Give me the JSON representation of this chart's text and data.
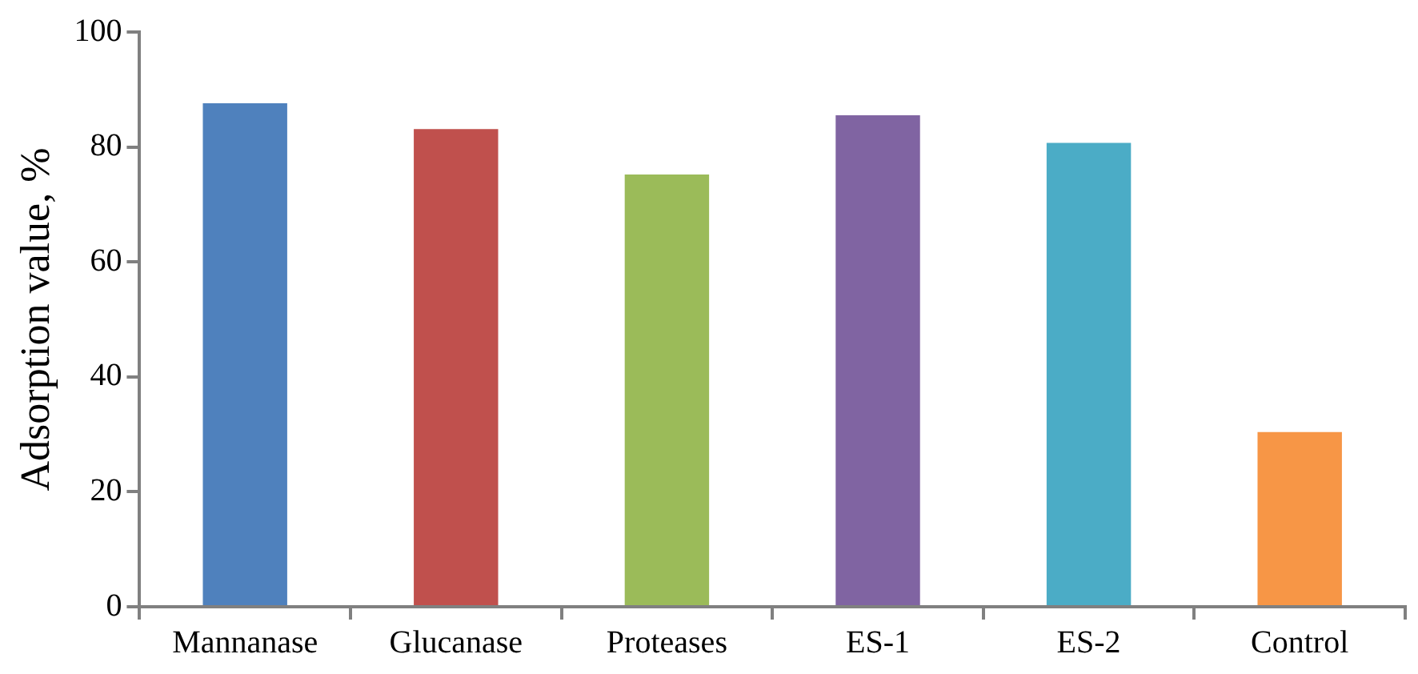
{
  "chart_data": {
    "type": "bar",
    "ylabel": "Adsorption value, %",
    "categories": [
      "Mannanase",
      "Glucanase",
      "Proteases",
      "ES-1",
      "ES-2",
      "Control"
    ],
    "values": [
      87.6,
      83.1,
      75.2,
      85.5,
      80.7,
      30.4
    ],
    "colors": [
      "#4f81bd",
      "#c0504d",
      "#9bbb59",
      "#8064a2",
      "#4bacc6",
      "#f79646"
    ],
    "ylim": [
      0,
      100
    ],
    "yticks": [
      0,
      20,
      40,
      60,
      80,
      100
    ],
    "grid": false
  }
}
